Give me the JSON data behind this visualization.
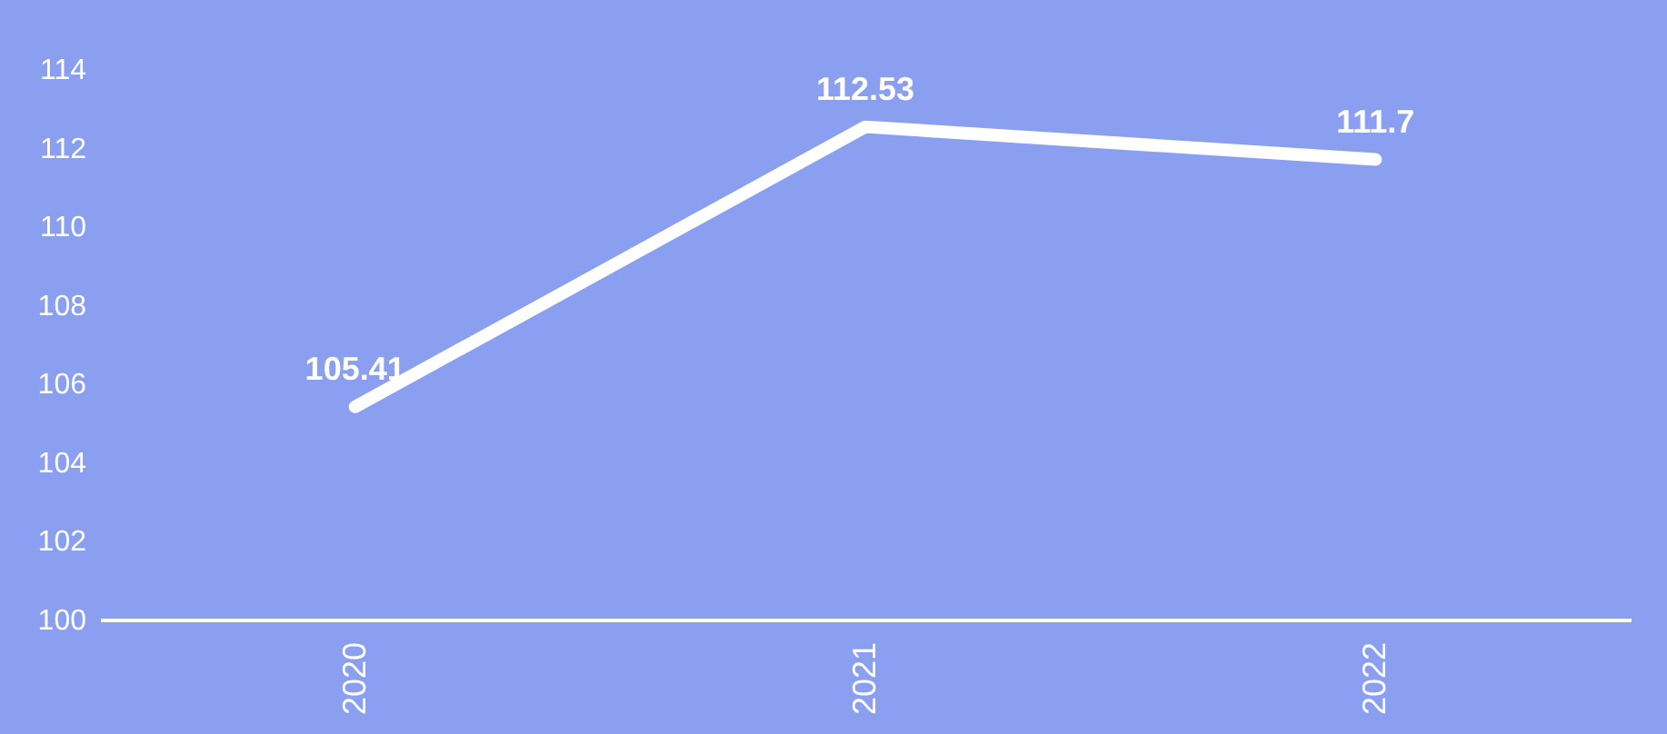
{
  "chart_data": {
    "type": "line",
    "categories": [
      "2020",
      "2021",
      "2022"
    ],
    "series": [
      {
        "color": "#ffffff",
        "values": [
          105.41,
          112.53,
          111.7
        ]
      }
    ],
    "ylim": [
      100,
      114
    ],
    "yticks": [
      100,
      102,
      104,
      106,
      108,
      110,
      112,
      114
    ],
    "grid": false,
    "legend": false,
    "marker": "none",
    "line_style": "solid",
    "data_labels": true
  }
}
